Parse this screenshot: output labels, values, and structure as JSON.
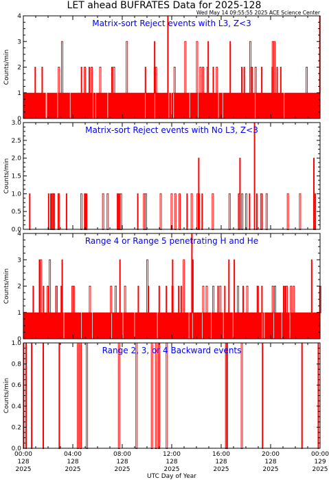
{
  "header": {
    "title": "LET ahead BUFRATES Data for 2025-128",
    "timestamp": "Wed May 14 09:55:55 2025 ACE Science Center"
  },
  "colors": {
    "data": "#ff0000",
    "panel_title": "#0000ff",
    "axes": "#000000"
  },
  "chart_data": [
    {
      "type": "bar",
      "title": "Matrix-sort Reject events with L3, Z<3",
      "ylabel": "Counts/min",
      "ylim": [
        0,
        4
      ],
      "yticks": [
        "0",
        "1",
        "2",
        "3",
        "4"
      ],
      "baseline": 1,
      "spikes": [
        {
          "h": 2.0,
          "n": 30,
          "s": 11
        },
        {
          "h": 3.0,
          "n": 10,
          "s": 23
        },
        {
          "h": 4.0,
          "n": 1,
          "at": 0.486
        },
        {
          "h": 4.0,
          "n": 1,
          "at": 0.998
        }
      ]
    },
    {
      "type": "bar",
      "title": "Matrix-sort Reject events with No L3, Z<3",
      "ylabel": "Counts/min",
      "ylim": [
        0,
        3.0
      ],
      "yticks": [
        "0.0",
        "0.5",
        "1.0",
        "1.5",
        "2.0",
        "2.5",
        "3.0"
      ],
      "baseline": 0,
      "spikes": [
        {
          "h": 1.0,
          "n": 45,
          "s": 5
        },
        {
          "h": 2.0,
          "n": 1,
          "at": 0.59
        },
        {
          "h": 2.0,
          "n": 1,
          "at": 0.729
        },
        {
          "h": 3.0,
          "n": 1,
          "at": 0.778
        },
        {
          "h": 2.0,
          "n": 1,
          "at": 0.978
        }
      ]
    },
    {
      "type": "bar",
      "title": "Range 4 or Range 5 penetrating H and He",
      "ylabel": "Counts/min",
      "ylim": [
        0,
        4
      ],
      "yticks": [
        "0",
        "1",
        "2",
        "3",
        "4"
      ],
      "baseline": 1,
      "spikes": [
        {
          "h": 2.0,
          "n": 40,
          "s": 41
        },
        {
          "h": 3.0,
          "n": 12,
          "s": 53
        },
        {
          "h": 4.0,
          "n": 1,
          "at": 0.567
        }
      ]
    },
    {
      "type": "bar",
      "title": "Range 2, 3, or 4 Backward events",
      "ylabel": "Counts/min",
      "ylim": [
        0,
        1.0
      ],
      "yticks": [
        "0.0",
        "0.2",
        "0.4",
        "0.6",
        "0.8",
        "1.0"
      ],
      "baseline": 0,
      "spikes": [
        {
          "h": 1.0,
          "at": 0.0
        },
        {
          "h": 1.0,
          "at": 0.008
        },
        {
          "h": 1.0,
          "at": 0.027
        },
        {
          "h": 1.0,
          "at": 0.066
        },
        {
          "h": 1.0,
          "at": 0.12
        },
        {
          "h": 1.0,
          "at": 0.182
        },
        {
          "h": 1.0,
          "at": 0.191
        },
        {
          "h": 1.0,
          "at": 0.212
        },
        {
          "h": 1.0,
          "at": 0.32
        },
        {
          "h": 1.0,
          "at": 0.379
        },
        {
          "h": 1.0,
          "at": 0.431
        },
        {
          "h": 1.0,
          "at": 0.481
        },
        {
          "h": 1.0,
          "at": 0.445
        },
        {
          "h": 1.0,
          "at": 0.455
        },
        {
          "h": 1.0,
          "at": 0.681
        },
        {
          "h": 1.0,
          "at": 0.684
        },
        {
          "h": 1.0,
          "at": 0.734
        },
        {
          "h": 1.0,
          "at": 0.805
        },
        {
          "h": 1.0,
          "at": 0.938
        },
        {
          "h": 1.0,
          "at": 0.993
        }
      ]
    }
  ],
  "xaxis": {
    "label": "UTC Day of Year",
    "xlim_hours": [
      0,
      24
    ],
    "ticks": [
      {
        "hour": 0,
        "time": "00:00",
        "doy": "128",
        "year": "2025"
      },
      {
        "hour": 4,
        "time": "04:00",
        "doy": "128",
        "year": "2025"
      },
      {
        "hour": 8,
        "time": "08:00",
        "doy": "128",
        "year": "2025"
      },
      {
        "hour": 12,
        "time": "12:00",
        "doy": "128",
        "year": "2025"
      },
      {
        "hour": 16,
        "time": "16:00",
        "doy": "128",
        "year": "2025"
      },
      {
        "hour": 20,
        "time": "20:00",
        "doy": "128",
        "year": "2025"
      },
      {
        "hour": 24,
        "time": "00:00",
        "doy": "129",
        "year": "2025"
      }
    ]
  }
}
